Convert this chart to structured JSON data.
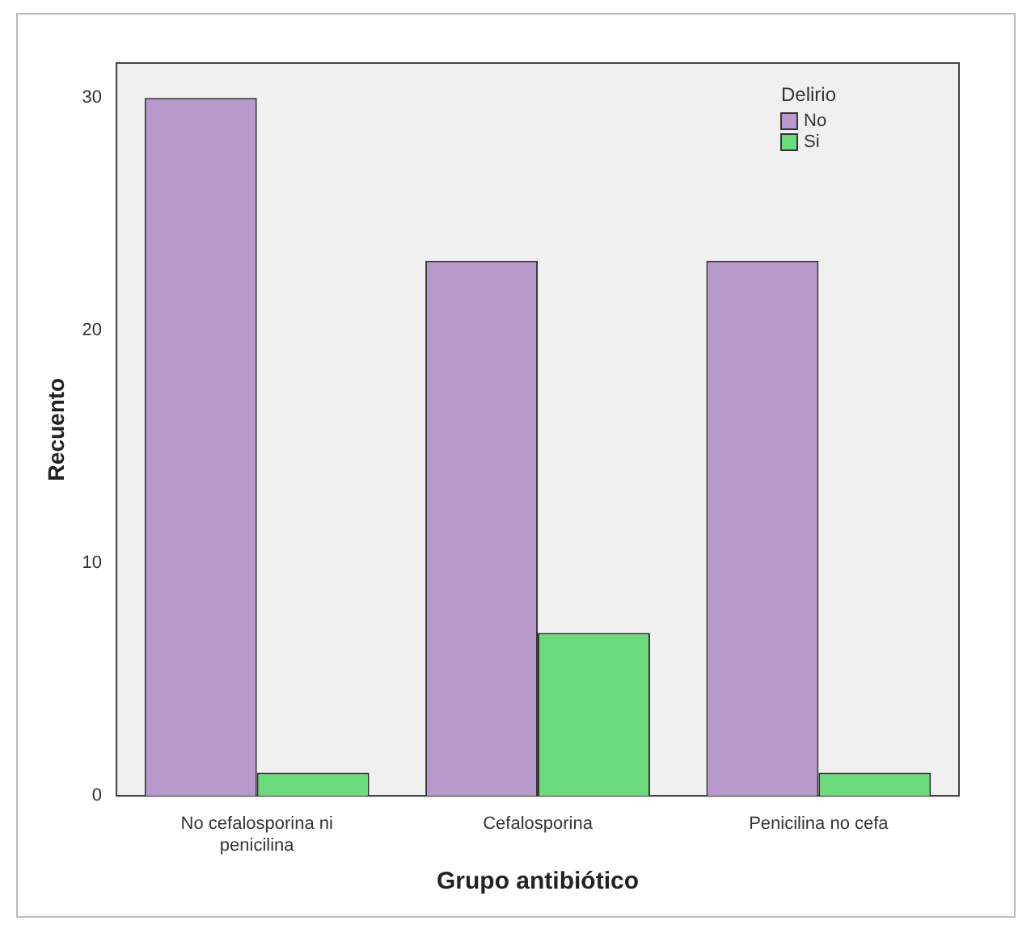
{
  "chart_data": {
    "type": "bar",
    "xlabel": "Grupo antibiótico",
    "ylabel": "Recuento",
    "legend_title": "Delirio",
    "categories": [
      "No cefalosporina ni penicilina",
      "Cefalosporina",
      "Penicilina no cefa"
    ],
    "series": [
      {
        "name": "No",
        "color": "#b799cc",
        "values": [
          30,
          23,
          23
        ]
      },
      {
        "name": "Si",
        "color": "#6cdb7c",
        "values": [
          1,
          7,
          1
        ]
      }
    ],
    "ylim": [
      0,
      31.5
    ],
    "yticks": [
      0,
      10,
      20,
      30
    ],
    "grid": false,
    "legend": "top right"
  }
}
